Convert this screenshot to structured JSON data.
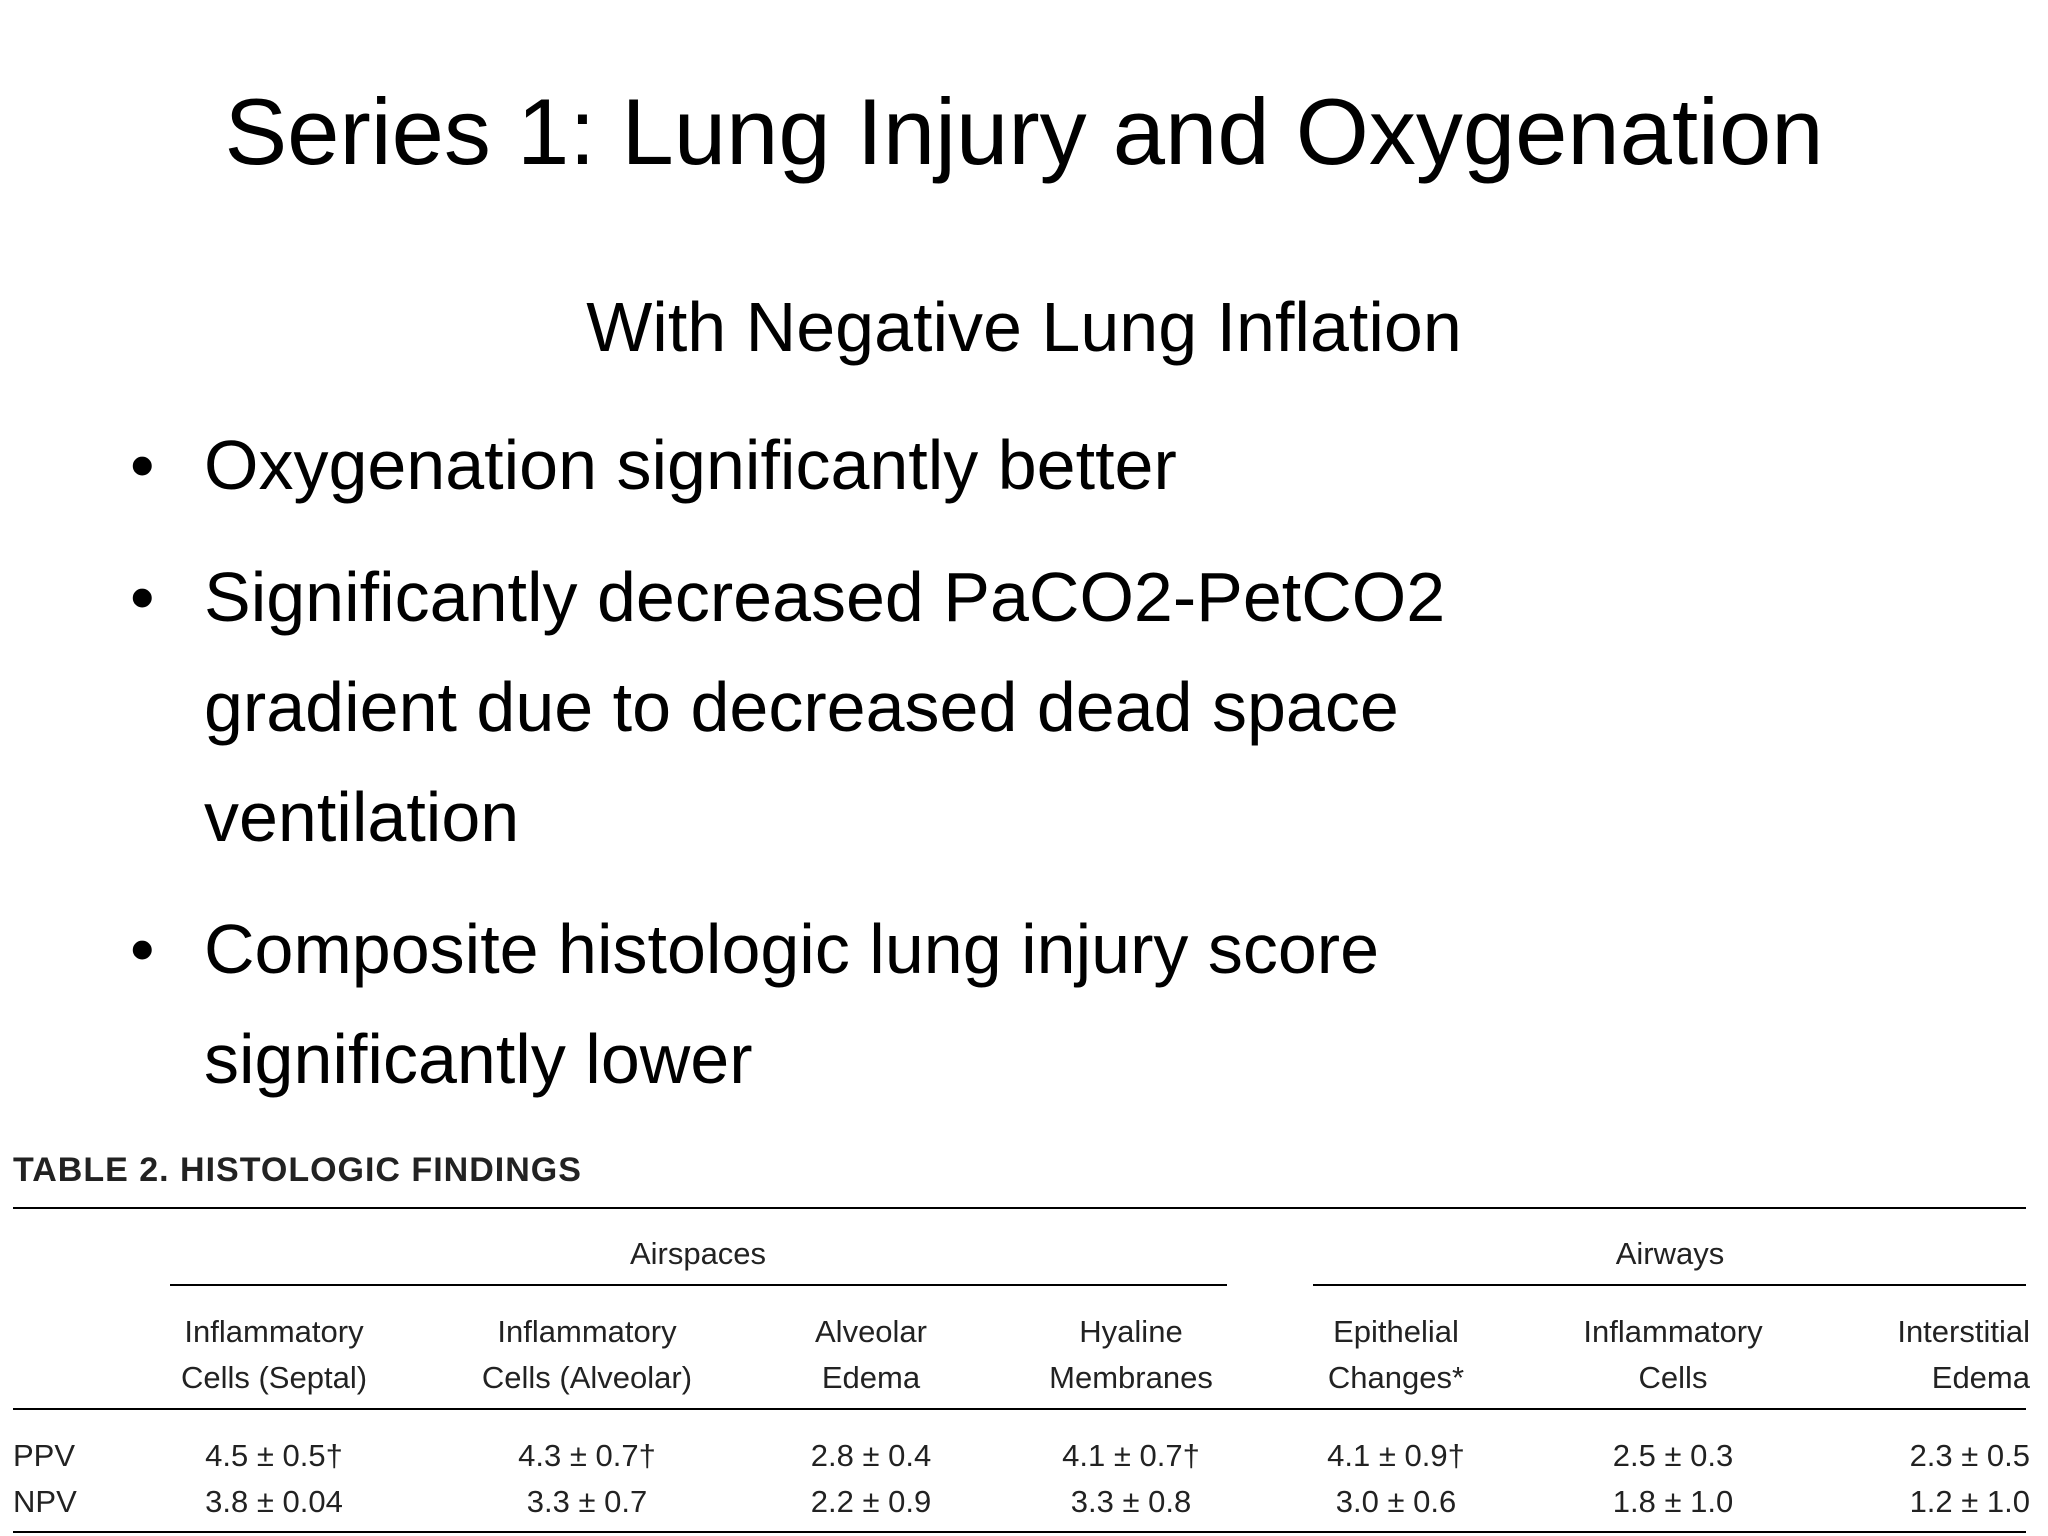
{
  "title": "Series 1: Lung Injury and Oxygenation",
  "subtitle": "With Negative Lung Inflation",
  "bullets": [
    "Oxygenation significantly better",
    "Significantly decreased PaCO2-PetCO2 gradient due to decreased dead space ventilation",
    "Composite histologic lung injury score significantly lower"
  ],
  "table": {
    "caption": "TABLE 2. HISTOLOGIC FINDINGS",
    "groups": [
      "Airspaces",
      "Airways"
    ],
    "columns": [
      [
        "Inflammatory",
        "Cells (Septal)"
      ],
      [
        "Inflammatory",
        "Cells (Alveolar)"
      ],
      [
        "Alveolar",
        "Edema"
      ],
      [
        "Hyaline",
        "Membranes"
      ],
      [
        "Epithelial",
        "Changes*"
      ],
      [
        "Inflammatory",
        "Cells"
      ],
      [
        "Interstitial",
        "Edema"
      ]
    ],
    "rows": [
      [
        "PPV",
        "4.5 ± 0.5†",
        "4.3 ± 0.7†",
        "2.8 ± 0.4",
        "4.1 ± 0.7†",
        "4.1 ± 0.9†",
        "2.5 ± 0.3",
        "2.3 ± 0.5"
      ],
      [
        "NPV",
        "3.8 ± 0.04",
        "3.3 ± 0.7",
        "2.2 ± 0.9",
        "3.3 ± 0.8",
        "3.0 ± 0.6",
        "1.8 ± 1.0",
        "1.2 ± 1.0"
      ]
    ]
  }
}
